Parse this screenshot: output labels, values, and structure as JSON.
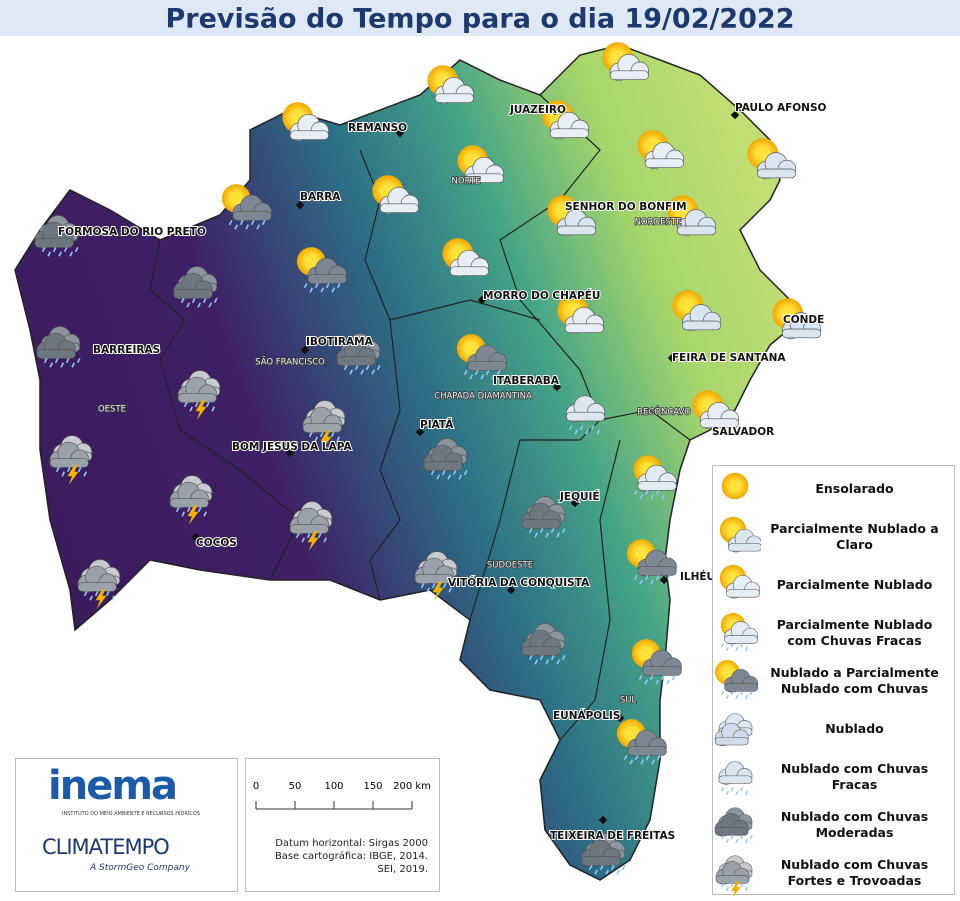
{
  "header": {
    "title": "Previsão do Tempo para o dia 19/02/2022"
  },
  "cities": [
    "REMANSO",
    "JUAZEIRO",
    "PAULO AFONSO",
    "BARRA",
    "SENHOR DO BONFIM",
    "FORMOSA DO RIO PRETO",
    "MORRO DO CHAPÉU",
    "CONDE",
    "BARREIRAS",
    "IBOTIRAMA",
    "FEIRA DE SANTANA",
    "ITABERABA",
    "SALVADOR",
    "PIATÃ",
    "BOM JESUS DA LAPA",
    "JEQUIÉ",
    "COCOS",
    "VITÓRIA DA CONQUISTA",
    "ILHÉUS",
    "EUNÁPOLIS",
    "TEIXEIRA DE FREITAS"
  ],
  "regions": [
    "NORTE",
    "NORDESTE",
    "SÃO FRANCISCO",
    "OESTE",
    "CHAPADA DIAMANTINA",
    "RECÔNCAVO",
    "SUDOESTE",
    "SUL"
  ],
  "legend": [
    "Ensolarado",
    "Parcialmente Nublado a Claro",
    "Parcialmente Nublado",
    "Parcialmente Nublado com Chuvas Fracas",
    "Nublado a Parcialmente Nublado com Chuvas",
    "Nublado",
    "Nublado com Chuvas Fracas",
    "Nublado com Chuvas Moderadas",
    "Nublado com Chuvas Fortes e Trovoadas"
  ],
  "logos": {
    "inema": "inema",
    "inema_subtitle": "INSTITUTO DO MEIO AMBIENTE E RECURSOS HÍDRICOS",
    "climatempo": "CLIMATEMPO",
    "climatempo_tagline": "A StormGeo Company"
  },
  "scale_bar": {
    "labels": [
      "0",
      "50",
      "100",
      "150",
      "200 km"
    ]
  },
  "notes": [
    "Datum horizontal: Sirgas 2000",
    "Base cartográfica: IBGE, 2014.",
    "SEI, 2019."
  ]
}
